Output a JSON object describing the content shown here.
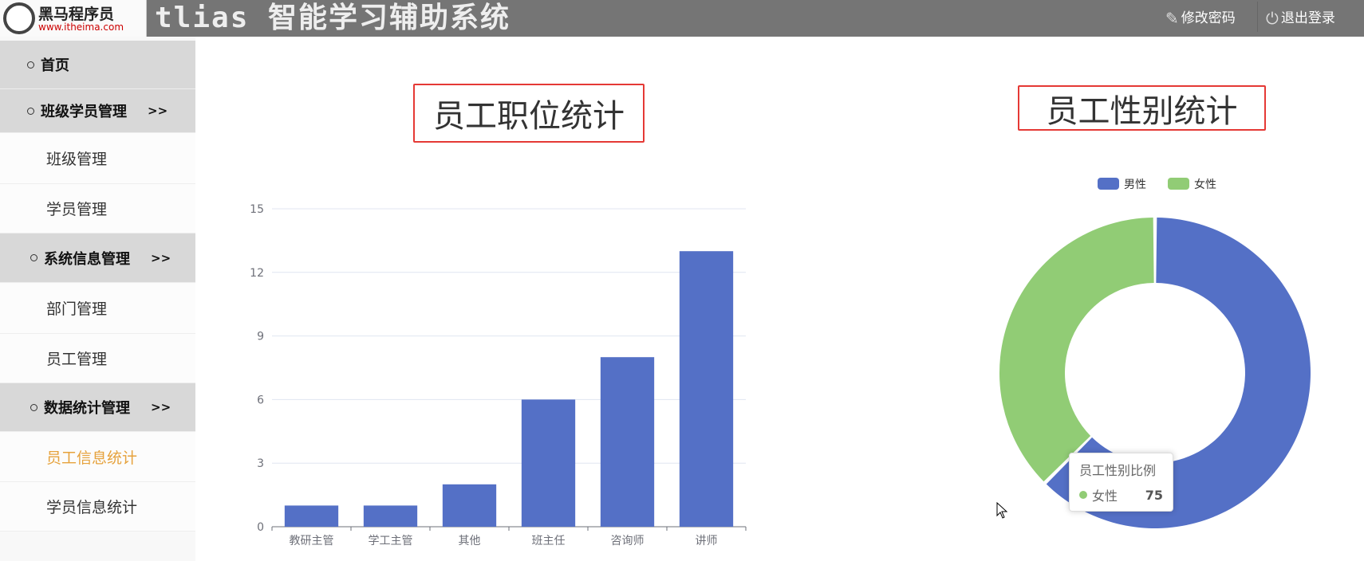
{
  "header": {
    "logo_text": "黑马程序员",
    "logo_url_text": "www.itheima.com",
    "title": "tlias 智能学习辅助系统",
    "change_password": "修改密码",
    "logout": "退出登录"
  },
  "sidebar": {
    "items": [
      {
        "label": "首页",
        "group": true
      },
      {
        "label": "班级学员管理",
        "group": true,
        "arrow": ">>"
      },
      {
        "label": "班级管理"
      },
      {
        "label": "学员管理"
      },
      {
        "label": "系统信息管理",
        "group": true,
        "arrow": ">>"
      },
      {
        "label": "部门管理"
      },
      {
        "label": "员工管理"
      },
      {
        "label": "数据统计管理",
        "group": true,
        "arrow": ">>"
      },
      {
        "label": "员工信息统计",
        "active": true
      },
      {
        "label": "学员信息统计"
      }
    ]
  },
  "colors": {
    "bar": "#5470c6",
    "male": "#5470c6",
    "female": "#91cc75",
    "active": "#e6a23c",
    "title_border": "#e53935"
  },
  "chart_data": [
    {
      "type": "bar",
      "title": "员工职位统计",
      "categories": [
        "教研主管",
        "学工主管",
        "其他",
        "班主任",
        "咨询师",
        "讲师"
      ],
      "values": [
        1,
        1,
        2,
        6,
        8,
        13
      ],
      "ylim": [
        0,
        15
      ],
      "yticks": [
        "0",
        "3",
        "6",
        "9",
        "12",
        "15"
      ],
      "grid": true
    },
    {
      "type": "pie",
      "title": "员工性别统计",
      "legend": [
        "男性",
        "女性"
      ],
      "legend_position": "top",
      "values": [
        {
          "name": "男性",
          "value": 125
        },
        {
          "name": "女性",
          "value": 75
        }
      ],
      "tooltip": {
        "title": "员工性别比例",
        "name": "女性",
        "value": "75"
      }
    }
  ]
}
